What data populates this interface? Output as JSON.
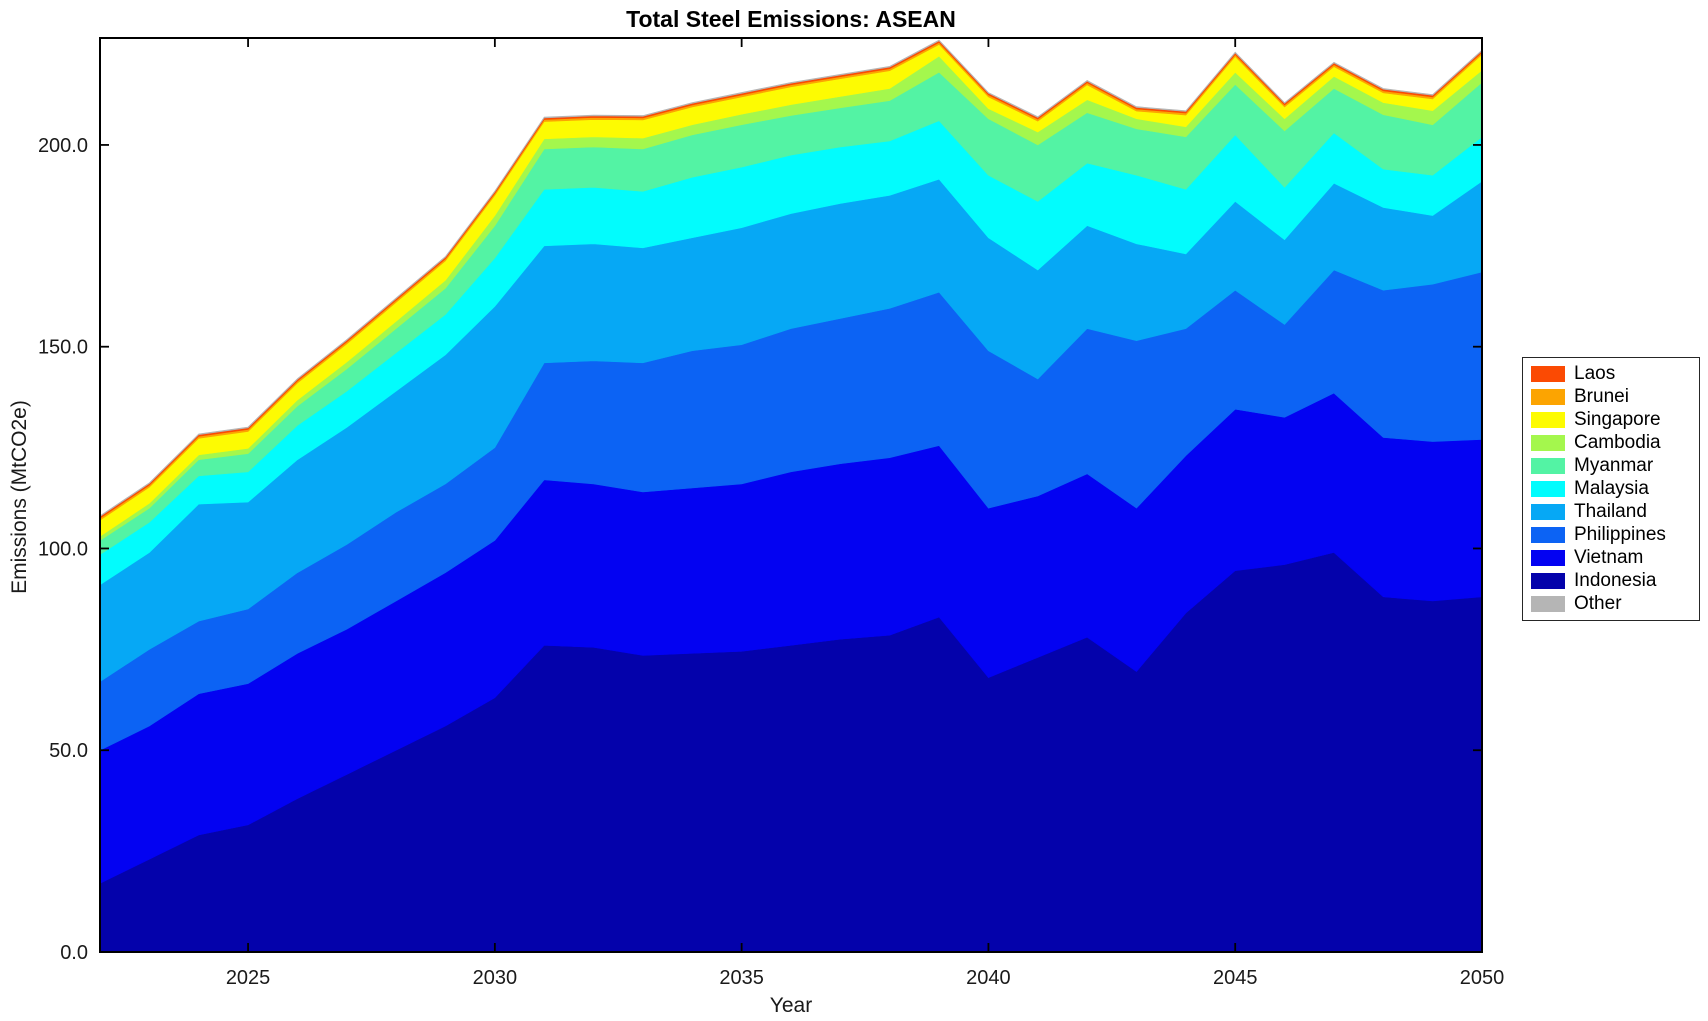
{
  "title": "Total Steel Emissions: ASEAN",
  "chart_data": {
    "type": "area",
    "stacked": true,
    "title": "Total Steel Emissions: ASEAN",
    "xlabel": "Year",
    "ylabel": "Emissions (MtCO2e)",
    "xlim": [
      2022,
      2050
    ],
    "ylim": [
      0,
      226.5
    ],
    "xticks": [
      2025,
      2030,
      2035,
      2040,
      2045,
      2050
    ],
    "xtick_labels": [
      "2025",
      "2030",
      "2035",
      "2040",
      "2045",
      "2050"
    ],
    "yticks": [
      0,
      50,
      100,
      150,
      200
    ],
    "ytick_labels": [
      "0.0",
      "50.0",
      "100.0",
      "150.0",
      "200.0"
    ],
    "grid": false,
    "legend_position": "right-outside",
    "legend_order_top_to_bottom": [
      "Laos",
      "Brunei",
      "Singapore",
      "Cambodia",
      "Myanmar",
      "Malaysia",
      "Thailand",
      "Philippines",
      "Vietnam",
      "Indonesia",
      "Other"
    ],
    "x": [
      2022,
      2023,
      2024,
      2025,
      2026,
      2027,
      2028,
      2029,
      2030,
      2031,
      2032,
      2033,
      2034,
      2035,
      2036,
      2037,
      2038,
      2039,
      2040,
      2041,
      2042,
      2043,
      2044,
      2045,
      2046,
      2047,
      2048,
      2049,
      2050
    ],
    "series": [
      {
        "name": "Indonesia",
        "color": "#0402AB",
        "values": [
          17,
          23,
          29,
          31.5,
          38,
          44,
          50,
          56,
          63,
          76,
          75.5,
          73.5,
          74,
          74.5,
          76,
          77.5,
          78.5,
          83,
          68,
          73,
          78,
          69.5,
          84,
          94.5,
          96,
          99,
          88,
          87,
          88
        ]
      },
      {
        "name": "Vietnam",
        "color": "#0302F2",
        "values": [
          33,
          33,
          35,
          35,
          36,
          36,
          37,
          38,
          39,
          41,
          40.5,
          40.5,
          41,
          41.5,
          43,
          43.5,
          44,
          42.5,
          42,
          40,
          40.5,
          40.5,
          39,
          40,
          36.5,
          39.5,
          39.5,
          39.5,
          39
        ]
      },
      {
        "name": "Philippines",
        "color": "#0C63F4",
        "values": [
          17,
          19,
          18,
          18.5,
          20,
          21,
          22,
          22,
          23,
          29,
          30.5,
          32,
          34,
          34.5,
          35.5,
          36,
          37,
          38,
          39,
          29,
          36,
          41.5,
          31.5,
          29.5,
          23,
          30.5,
          36.5,
          39,
          41.5
        ]
      },
      {
        "name": "Thailand",
        "color": "#06A8F5",
        "values": [
          24,
          24,
          29,
          26.5,
          28,
          29,
          30,
          32,
          35,
          29,
          29,
          28.5,
          28,
          29,
          28.5,
          28.5,
          28,
          28,
          28,
          27,
          25.5,
          24,
          18.5,
          22,
          21,
          21.5,
          20.5,
          17,
          22.5
        ]
      },
      {
        "name": "Malaysia",
        "color": "#02FCFD",
        "values": [
          7.5,
          7.5,
          7,
          7.5,
          8.5,
          9,
          9.5,
          10,
          12,
          14,
          14,
          14,
          15,
          15,
          14.5,
          14,
          13.5,
          14.5,
          15.5,
          17,
          15.5,
          17,
          16,
          16.5,
          13,
          12.5,
          9.5,
          10,
          11
        ]
      },
      {
        "name": "Myanmar",
        "color": "#53F3A4",
        "values": [
          3.5,
          3.5,
          4,
          4.5,
          4.8,
          5.5,
          6,
          6.5,
          8,
          10,
          10,
          10.5,
          10.5,
          10.5,
          9.8,
          9.7,
          10,
          12,
          14,
          14,
          12.5,
          11.5,
          13,
          12.5,
          14,
          11,
          13.5,
          12.5,
          13.5
        ]
      },
      {
        "name": "Cambodia",
        "color": "#A4F74D",
        "values": [
          1,
          1.2,
          1.2,
          1.3,
          1.5,
          1.7,
          1.8,
          2,
          2.5,
          2.5,
          2.5,
          2.7,
          2.5,
          2.6,
          2.7,
          2.8,
          3,
          4,
          2.5,
          3.2,
          3.2,
          2.5,
          2.5,
          3,
          3,
          3,
          3,
          3.5,
          3
        ]
      },
      {
        "name": "Singapore",
        "color": "#FDFB02",
        "values": [
          4,
          4,
          4.1,
          4.2,
          4.2,
          4.5,
          4.7,
          4.8,
          5,
          4.3,
          4.3,
          4.5,
          4.4,
          4.3,
          4.4,
          4.4,
          4.4,
          2.9,
          2.9,
          2.7,
          3.7,
          1.9,
          2.9,
          3.9,
          2.9,
          2.4,
          2.4,
          2.9,
          3.9
        ]
      },
      {
        "name": "Brunei",
        "color": "#FCA401",
        "values": [
          0.5,
          0.5,
          0.5,
          0.5,
          0.5,
          0.5,
          0.5,
          0.5,
          0.5,
          0.5,
          0.5,
          0.5,
          0.5,
          0.5,
          0.5,
          0.5,
          0.5,
          0.5,
          0.5,
          0.5,
          0.5,
          0.5,
          0.5,
          0.5,
          0.5,
          0.5,
          0.5,
          0.5,
          0.5
        ]
      },
      {
        "name": "Laos",
        "color": "#FB4A03",
        "values": [
          0.4,
          0.4,
          0.4,
          0.4,
          0.4,
          0.4,
          0.4,
          0.4,
          0.4,
          0.4,
          0.4,
          0.4,
          0.4,
          0.4,
          0.4,
          0.4,
          0.4,
          0.4,
          0.4,
          0.4,
          0.4,
          0.4,
          0.4,
          0.4,
          0.4,
          0.4,
          0.4,
          0.4,
          0.4
        ]
      },
      {
        "name": "Other",
        "color": "#B5B5B5",
        "values": [
          0.2,
          0.2,
          0.2,
          0.2,
          0.2,
          0.2,
          0.2,
          0.2,
          0.2,
          0.2,
          0.2,
          0.2,
          0.2,
          0.2,
          0.2,
          0.2,
          0.2,
          0.2,
          0.2,
          0.2,
          0.2,
          0.2,
          0.2,
          0.2,
          0.2,
          0.2,
          0.2,
          0.2,
          0.2
        ]
      }
    ],
    "axis_color": "#000000",
    "tick_label_color": "#1a1a1a"
  }
}
